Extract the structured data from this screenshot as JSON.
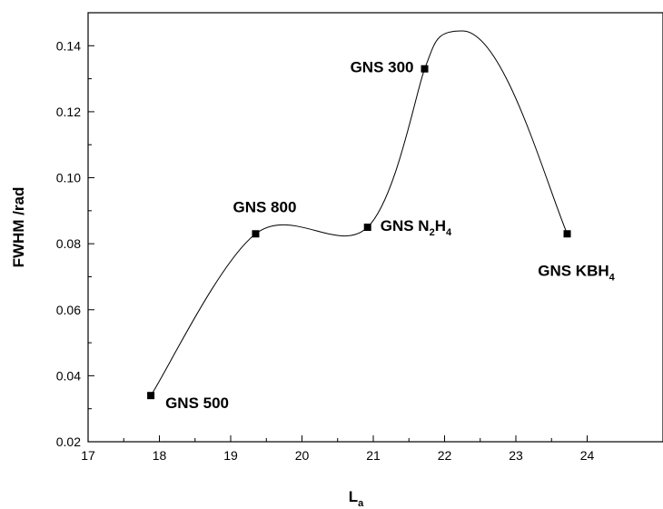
{
  "chart_data": {
    "type": "scatter",
    "xlabel": "L",
    "xlabel_sub": "a",
    "ylabel": "FWHM /rad",
    "xlim": [
      17,
      24.4
    ],
    "ylim": [
      0.02,
      0.15
    ],
    "xticks": [
      "17",
      "18",
      "19",
      "20",
      "21",
      "22",
      "23",
      "24"
    ],
    "yticks": [
      "0.02",
      "0.04",
      "0.06",
      "0.08",
      "0.10",
      "0.12",
      "0.14"
    ],
    "grid": false,
    "series": [
      {
        "points": [
          {
            "x": 17.88,
            "y": 0.034,
            "label": "GNS 500"
          },
          {
            "x": 19.35,
            "y": 0.083,
            "label": "GNS 800"
          },
          {
            "x": 20.92,
            "y": 0.085,
            "label": "GNS N",
            "label_sub1": "2",
            "label_mid": "H",
            "label_sub2": "4"
          },
          {
            "x": 21.72,
            "y": 0.133,
            "label": "GNS 300"
          },
          {
            "x": 23.72,
            "y": 0.083,
            "label": "GNS KBH",
            "label_sub1": "4"
          }
        ]
      }
    ],
    "smooth_curve": true
  }
}
